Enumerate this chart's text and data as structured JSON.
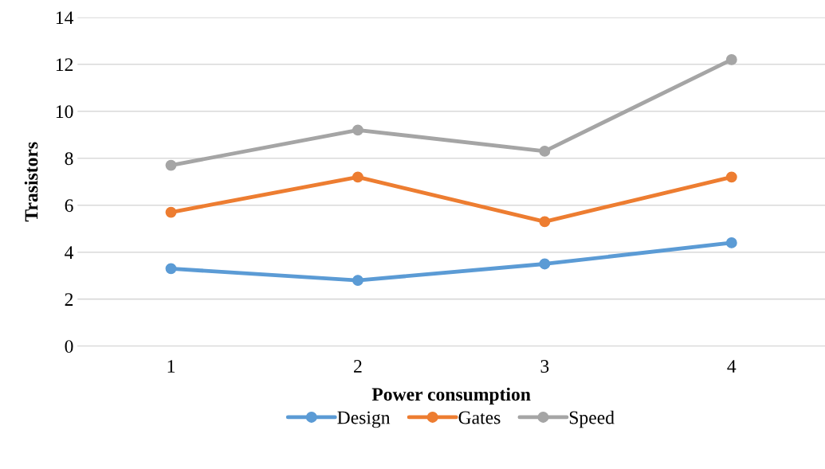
{
  "chart_data": {
    "type": "line",
    "xlabel": "Power consumption",
    "ylabel": "Trasistors",
    "categories": [
      "1",
      "2",
      "3",
      "4"
    ],
    "series": [
      {
        "name": "Design",
        "color": "#5b9bd5",
        "values": [
          3.3,
          2.8,
          3.5,
          4.4
        ]
      },
      {
        "name": "Gates",
        "color": "#ed7d31",
        "values": [
          5.7,
          7.2,
          5.3,
          7.2
        ]
      },
      {
        "name": "Speed",
        "color": "#a5a5a5",
        "values": [
          7.7,
          9.2,
          8.3,
          12.2
        ]
      }
    ],
    "ylim": [
      0,
      14
    ],
    "yticks": [
      0,
      2,
      4,
      6,
      8,
      10,
      12,
      14
    ],
    "grid": "y",
    "legend": "bottom",
    "marker": "circle",
    "line_style": "solid"
  }
}
